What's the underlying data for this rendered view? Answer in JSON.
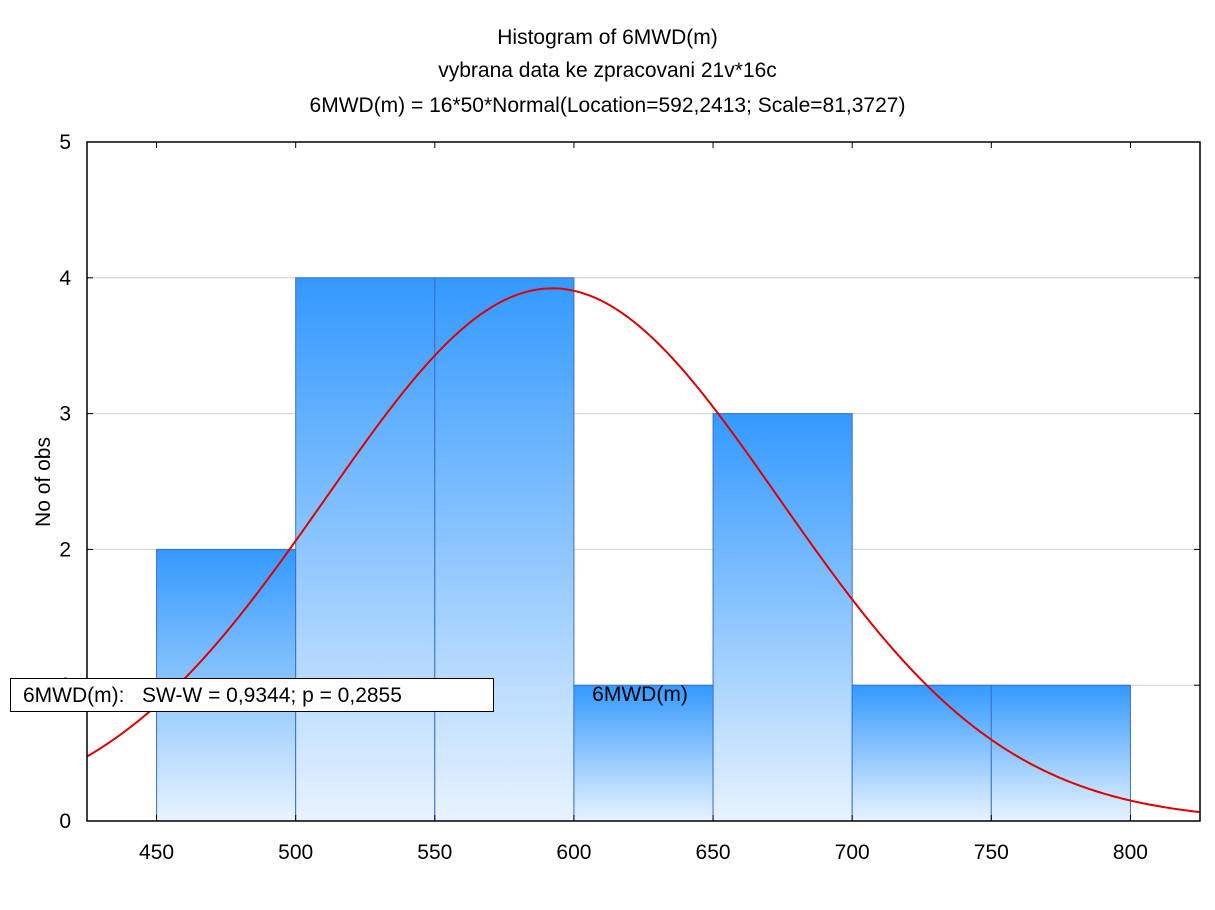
{
  "chart_data": {
    "type": "bar",
    "title": "Histogram of 6MWD(m)",
    "subtitle": "vybrana data ke zpracovani 21v*16c",
    "subtitle2": "6MWD(m) = 16*50*Normal(Location=592,2413; Scale=81,3727)",
    "xlabel": "6MWD(m)",
    "ylabel": "No of obs",
    "bin_edges": [
      450,
      500,
      550,
      600,
      650,
      700,
      750,
      800
    ],
    "values": [
      2,
      4,
      4,
      1,
      3,
      1,
      1
    ],
    "xlim": [
      425,
      825
    ],
    "ylim": [
      0,
      5
    ],
    "xticks": [
      "450",
      "500",
      "550",
      "600",
      "650",
      "700",
      "750",
      "800"
    ],
    "yticks": [
      "0",
      "1",
      "2",
      "3",
      "4",
      "5"
    ],
    "grid": "horizontal",
    "normal_fit": {
      "n": 16,
      "bin_width": 50,
      "location": 592.2413,
      "scale": 81.3727,
      "color": "#e00000"
    },
    "bar_color_top": "#3399ff",
    "bar_color_bottom": "#e8f3ff",
    "stats_text": "6MWD(m):   SW-W = 0,9344; p = 0,2855"
  }
}
